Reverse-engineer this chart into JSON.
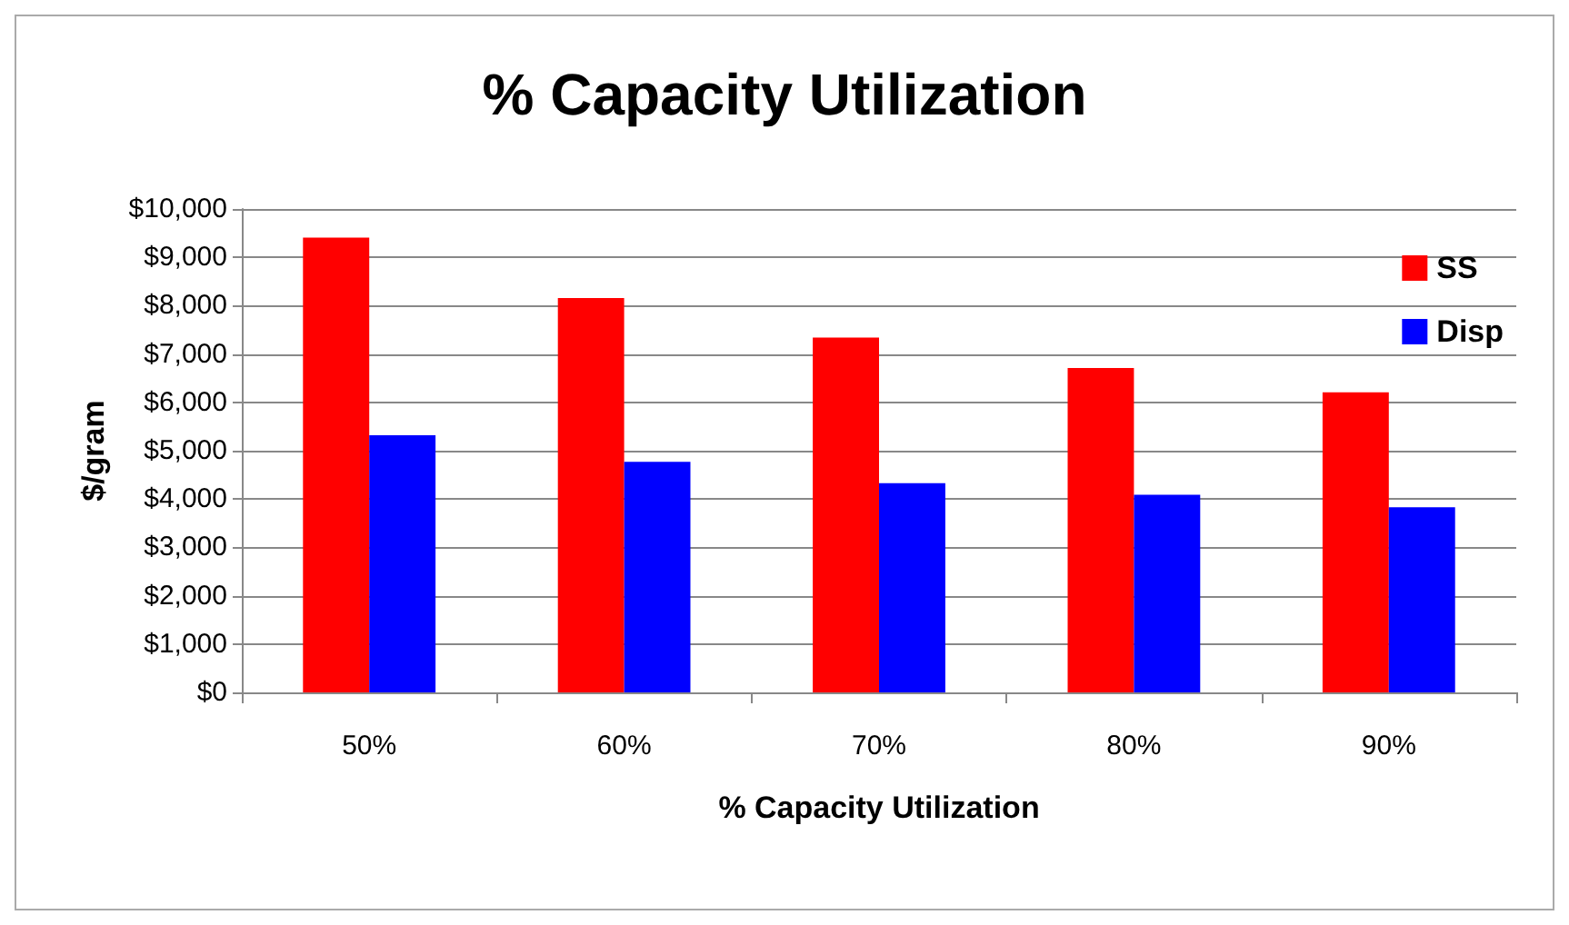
{
  "chart_data": {
    "type": "bar",
    "title": "% Capacity Utilization",
    "xlabel": "% Capacity Utilization",
    "ylabel": "$/gram",
    "categories": [
      "50%",
      "60%",
      "70%",
      "80%",
      "90%"
    ],
    "series": [
      {
        "name": "SS",
        "color": "#ff0000",
        "values": [
          9410,
          8160,
          7340,
          6710,
          6210
        ]
      },
      {
        "name": "Disp",
        "color": "#0000ff",
        "values": [
          5320,
          4770,
          4330,
          4090,
          3830
        ]
      }
    ],
    "ylim": [
      0,
      10000
    ],
    "yticks": [
      {
        "value": 0,
        "label": "$0"
      },
      {
        "value": 1000,
        "label": "$1,000"
      },
      {
        "value": 2000,
        "label": "$2,000"
      },
      {
        "value": 3000,
        "label": "$3,000"
      },
      {
        "value": 4000,
        "label": "$4,000"
      },
      {
        "value": 5000,
        "label": "$5,000"
      },
      {
        "value": 6000,
        "label": "$6,000"
      },
      {
        "value": 7000,
        "label": "$7,000"
      },
      {
        "value": 8000,
        "label": "$8,000"
      },
      {
        "value": 9000,
        "label": "$9,000"
      },
      {
        "value": 10000,
        "label": "$10,000"
      }
    ],
    "grid": "y",
    "legend": "top right"
  }
}
